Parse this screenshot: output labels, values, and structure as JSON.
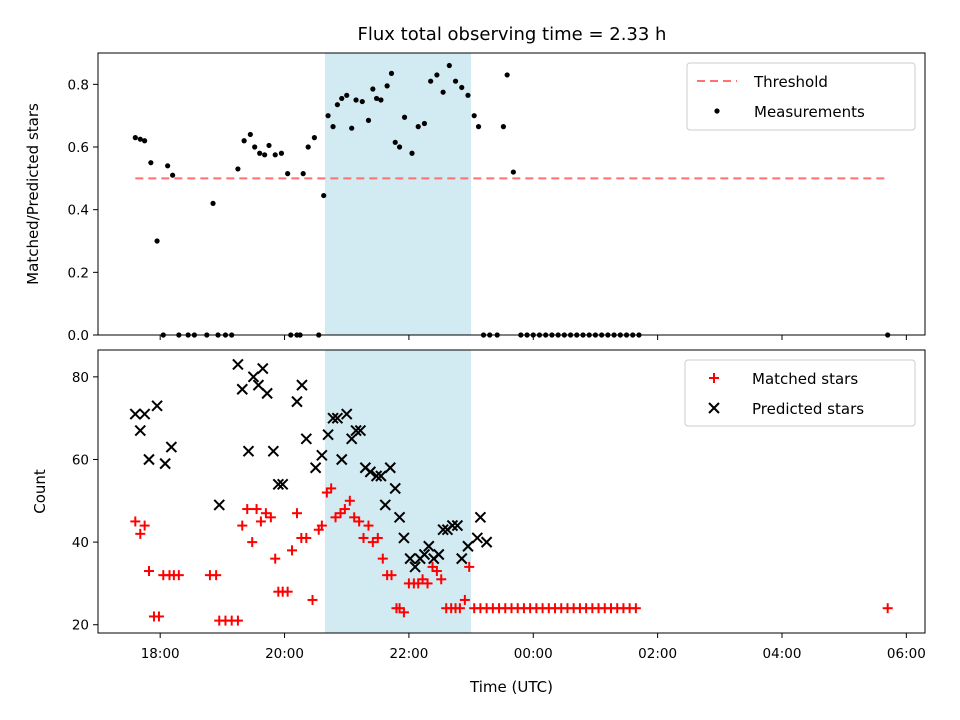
{
  "title": "Flux total observing time = 2.33 h",
  "colors": {
    "threshold": "#ff7070",
    "measurement": "#000000",
    "matched": "#ff0000",
    "predicted": "#000000",
    "shade": "#add8e6"
  },
  "chart_data": [
    {
      "type": "scatter",
      "ylabel": "Matched/Predicted stars",
      "xlim": [
        17,
        30.3
      ],
      "ylim": [
        0,
        0.9
      ],
      "yticks": [
        0.0,
        0.2,
        0.4,
        0.6,
        0.8
      ],
      "ytick_labels": [
        "0.0",
        "0.2",
        "0.4",
        "0.6",
        "0.8"
      ],
      "shaded_span": [
        20.65,
        23.0
      ],
      "legend": {
        "placement": "top-right",
        "entries": [
          "Threshold",
          "Measurements"
        ]
      },
      "threshold": {
        "name": "Threshold",
        "x": [
          17.6,
          29.7
        ],
        "y": 0.5
      },
      "measurements": {
        "name": "Measurements",
        "x": [
          17.6,
          17.68,
          17.75,
          17.85,
          17.95,
          18.05,
          18.12,
          18.2,
          18.3,
          18.45,
          18.55,
          18.75,
          18.85,
          18.93,
          19.05,
          19.15,
          19.25,
          19.35,
          19.45,
          19.52,
          19.6,
          19.68,
          19.75,
          19.85,
          19.95,
          20.05,
          20.1,
          20.2,
          20.25,
          20.3,
          20.38,
          20.48,
          20.55,
          20.63,
          20.7,
          20.78,
          20.85,
          20.92,
          21.0,
          21.08,
          21.15,
          21.25,
          21.35,
          21.42,
          21.48,
          21.55,
          21.65,
          21.72,
          21.78,
          21.85,
          21.93,
          22.05,
          22.15,
          22.25,
          22.35,
          22.45,
          22.55,
          22.65,
          22.75,
          22.85,
          22.95,
          23.05,
          23.12,
          23.2,
          23.3,
          23.42,
          23.52,
          23.58,
          23.68,
          23.8,
          23.9,
          24.0,
          24.1,
          24.2,
          24.3,
          24.4,
          24.5,
          24.6,
          24.7,
          24.8,
          24.9,
          25.0,
          25.1,
          25.2,
          25.3,
          25.4,
          25.5,
          25.6,
          25.7,
          29.7
        ],
        "y": [
          0.63,
          0.625,
          0.62,
          0.55,
          0.3,
          0.0,
          0.54,
          0.51,
          0.0,
          0.0,
          0.0,
          0.0,
          0.42,
          0.0,
          0.0,
          0.0,
          0.53,
          0.62,
          0.64,
          0.6,
          0.58,
          0.575,
          0.605,
          0.575,
          0.58,
          0.515,
          0.0,
          0.0,
          0.0,
          0.515,
          0.6,
          0.63,
          0.0,
          0.445,
          0.7,
          0.665,
          0.735,
          0.755,
          0.765,
          0.66,
          0.75,
          0.745,
          0.685,
          0.785,
          0.755,
          0.75,
          0.795,
          0.835,
          0.615,
          0.6,
          0.695,
          0.58,
          0.665,
          0.675,
          0.81,
          0.83,
          0.775,
          0.86,
          0.81,
          0.79,
          0.765,
          0.7,
          0.665,
          0.0,
          0.0,
          0.0,
          0.665,
          0.83,
          0.52,
          0.0,
          0.0,
          0.0,
          0.0,
          0.0,
          0.0,
          0.0,
          0.0,
          0.0,
          0.0,
          0.0,
          0.0,
          0.0,
          0.0,
          0.0,
          0.0,
          0.0,
          0.0,
          0.0,
          0.0,
          0.0
        ]
      }
    },
    {
      "type": "scatter",
      "xlabel": "Time (UTC)",
      "ylabel": "Count",
      "xlim": [
        17,
        30.3
      ],
      "ylim": [
        18,
        86.5
      ],
      "xticks": [
        18,
        20,
        22,
        24,
        26,
        28,
        30
      ],
      "xtick_labels": [
        "18:00",
        "20:00",
        "22:00",
        "00:00",
        "02:00",
        "04:00",
        "06:00"
      ],
      "yticks": [
        20,
        40,
        60,
        80
      ],
      "ytick_labels": [
        "20",
        "40",
        "60",
        "80"
      ],
      "shaded_span": [
        20.65,
        23.0
      ],
      "legend": {
        "placement": "top-right",
        "entries": [
          "Matched stars",
          "Predicted stars"
        ]
      },
      "series": [
        {
          "name": "Matched stars",
          "marker": "plus",
          "x": [
            17.6,
            17.68,
            17.75,
            17.82,
            17.9,
            17.98,
            18.05,
            18.15,
            18.22,
            18.3,
            18.8,
            18.9,
            18.95,
            19.05,
            19.15,
            19.25,
            19.32,
            19.4,
            19.48,
            19.55,
            19.62,
            19.7,
            19.78,
            19.85,
            19.9,
            19.97,
            20.05,
            20.12,
            20.2,
            20.27,
            20.35,
            20.45,
            20.55,
            20.6,
            20.68,
            20.75,
            20.82,
            20.9,
            20.97,
            21.05,
            21.12,
            21.2,
            21.27,
            21.35,
            21.42,
            21.5,
            21.58,
            21.65,
            21.72,
            21.8,
            21.85,
            21.92,
            22.0,
            22.08,
            22.15,
            22.22,
            22.3,
            22.38,
            22.45,
            22.52,
            22.6,
            22.68,
            22.75,
            22.82,
            22.9,
            22.97,
            23.05,
            23.15,
            23.25,
            23.35,
            23.45,
            23.55,
            23.65,
            23.75,
            23.85,
            23.95,
            24.05,
            24.15,
            24.25,
            24.35,
            24.45,
            24.55,
            24.65,
            24.75,
            24.85,
            24.95,
            25.05,
            25.15,
            25.25,
            25.35,
            25.45,
            25.55,
            25.65,
            29.7
          ],
          "y": [
            45,
            42,
            44,
            33,
            22,
            22,
            32,
            32,
            32,
            32,
            32,
            32,
            21,
            21,
            21,
            21,
            44,
            48,
            40,
            48,
            45,
            47,
            46,
            36,
            28,
            28,
            28,
            38,
            47,
            41,
            41,
            26,
            43,
            44,
            52,
            53,
            46,
            47,
            48,
            50,
            46,
            45,
            41,
            44,
            40,
            41,
            36,
            32,
            32,
            24,
            24,
            23,
            30,
            30,
            30,
            31,
            30,
            34,
            33,
            31,
            24,
            24,
            24,
            24,
            26,
            34,
            24,
            24,
            24,
            24,
            24,
            24,
            24,
            24,
            24,
            24,
            24,
            24,
            24,
            24,
            24,
            24,
            24,
            24,
            24,
            24,
            24,
            24,
            24,
            24,
            24,
            24,
            24,
            24
          ]
        },
        {
          "name": "Predicted stars",
          "marker": "x",
          "x": [
            17.6,
            17.68,
            17.75,
            17.82,
            17.95,
            18.08,
            18.18,
            18.95,
            19.25,
            19.32,
            19.42,
            19.5,
            19.58,
            19.65,
            19.72,
            19.82,
            19.9,
            19.97,
            20.2,
            20.28,
            20.35,
            20.5,
            20.6,
            20.7,
            20.78,
            20.85,
            20.92,
            21.0,
            21.08,
            21.15,
            21.22,
            21.3,
            21.38,
            21.48,
            21.55,
            21.62,
            21.7,
            21.78,
            21.85,
            21.92,
            22.02,
            22.1,
            22.18,
            22.25,
            22.32,
            22.4,
            22.48,
            22.55,
            22.62,
            22.7,
            22.78,
            22.85,
            22.95,
            23.1,
            23.15,
            23.25
          ],
          "y": [
            71,
            67,
            71,
            60,
            73,
            59,
            63,
            49,
            83,
            77,
            62,
            80,
            78,
            82,
            76,
            62,
            54,
            54,
            74,
            78,
            65,
            58,
            61,
            66,
            70,
            70,
            60,
            71,
            65,
            67,
            67,
            58,
            57,
            56,
            56,
            49,
            58,
            53,
            46,
            41,
            36,
            34,
            36,
            37,
            39,
            36,
            37,
            43,
            43,
            44,
            44,
            36,
            39,
            41,
            46,
            40
          ]
        }
      ]
    }
  ]
}
